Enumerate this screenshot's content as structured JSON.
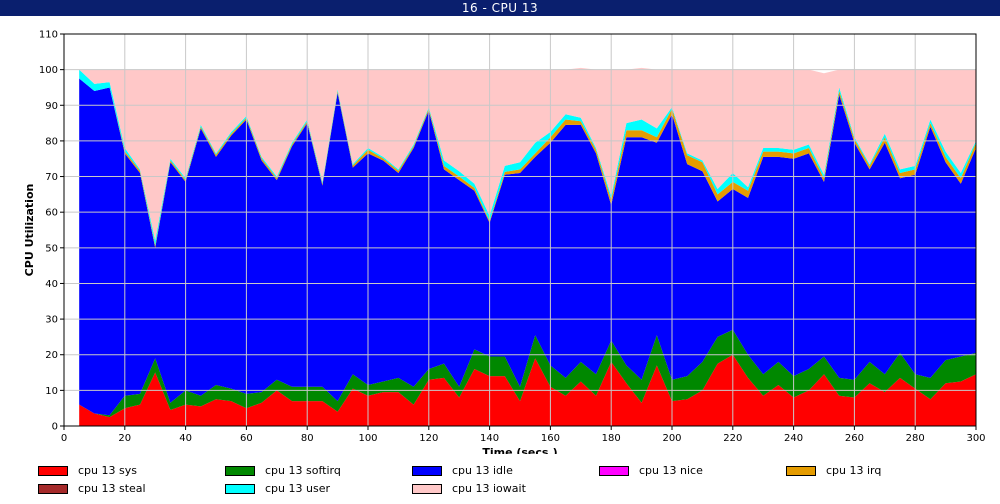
{
  "window": {
    "title": "16 - CPU 13"
  },
  "chart_data": {
    "type": "area",
    "stacked": true,
    "xlabel": "Time (secs.)",
    "ylabel": "CPU Utilization",
    "xlim": [
      0,
      300
    ],
    "ylim": [
      0,
      110
    ],
    "x_ticks": [
      0,
      20,
      40,
      60,
      80,
      100,
      120,
      140,
      160,
      180,
      200,
      220,
      240,
      260,
      280,
      300
    ],
    "y_ticks": [
      0,
      10,
      20,
      30,
      40,
      50,
      60,
      70,
      80,
      90,
      100,
      110
    ],
    "grid": true,
    "legend_position": "bottom",
    "x": [
      5,
      10,
      15,
      20,
      25,
      30,
      35,
      40,
      45,
      50,
      55,
      60,
      65,
      70,
      75,
      80,
      85,
      90,
      95,
      100,
      105,
      110,
      115,
      120,
      125,
      130,
      135,
      140,
      145,
      150,
      155,
      160,
      165,
      170,
      175,
      180,
      185,
      190,
      195,
      200,
      205,
      210,
      215,
      220,
      225,
      230,
      235,
      240,
      245,
      250,
      255,
      260,
      265,
      270,
      275,
      280,
      285,
      290,
      295,
      300
    ],
    "series": [
      {
        "name": "cpu 13 sys",
        "color": "#ff0000",
        "values": [
          6,
          3.5,
          2.5,
          5,
          6,
          15,
          4.5,
          6,
          5.5,
          7.5,
          7,
          5,
          6.5,
          10,
          7,
          7,
          7,
          4,
          10.5,
          8.5,
          9.5,
          9.5,
          6,
          13,
          13.5,
          8,
          16,
          14,
          14,
          7,
          19,
          11,
          8.5,
          12.5,
          8.5,
          18,
          12,
          6.5,
          17,
          7,
          7.5,
          10,
          17.5,
          20,
          13.5,
          8.5,
          11.5,
          8,
          10,
          14.5,
          8.5,
          8,
          12,
          9.5,
          13.5,
          10.5,
          7.5,
          12,
          12.5,
          14.5
        ]
      },
      {
        "name": "cpu 13 softirq",
        "color": "#008800",
        "values": [
          0,
          0,
          0.5,
          3.5,
          3,
          4,
          2,
          4,
          3,
          4,
          3.5,
          4,
          3,
          3,
          4,
          4,
          4,
          3,
          4,
          3,
          3,
          4,
          5,
          3,
          4,
          3,
          5.5,
          5.5,
          5.5,
          4,
          6.5,
          6,
          5,
          5.5,
          6,
          6,
          5,
          6.5,
          8.5,
          6,
          6.5,
          8,
          7.5,
          7,
          6.5,
          6,
          6.5,
          6,
          6,
          5,
          5,
          5,
          6,
          5,
          7,
          4,
          6,
          6.5,
          7,
          6
        ]
      },
      {
        "name": "cpu 13 idle",
        "color": "#0000ff",
        "values": [
          91.5,
          90.5,
          92,
          68,
          62,
          31,
          67.5,
          58.5,
          75,
          64,
          71,
          77,
          65,
          56,
          67.5,
          74,
          56.5,
          86.5,
          58,
          65,
          62,
          57.5,
          67,
          72.5,
          54.5,
          58,
          44.5,
          37.5,
          51,
          60,
          50,
          62.5,
          71,
          66.5,
          62,
          38,
          64,
          68,
          54,
          74.5,
          59.5,
          53.5,
          38,
          39.5,
          44,
          61,
          57.5,
          61,
          60.5,
          49,
          79.5,
          66.5,
          54,
          65,
          49,
          56,
          70.5,
          55.5,
          48.5,
          57.5
        ]
      },
      {
        "name": "cpu 13 nice",
        "color": "#ff00ff",
        "values": [
          0,
          0,
          0,
          0,
          0,
          0,
          0,
          0,
          0,
          0,
          0,
          0,
          0,
          0,
          0,
          0,
          0,
          0,
          0,
          0,
          0,
          0,
          0,
          0,
          0,
          0,
          0,
          0,
          0,
          0,
          0,
          0,
          0,
          0,
          0,
          0,
          0,
          0,
          0,
          0,
          0,
          0,
          0,
          0,
          0,
          0,
          0,
          0,
          0,
          0,
          0,
          0,
          0,
          0,
          0,
          0,
          0,
          0,
          0,
          0
        ]
      },
      {
        "name": "cpu 13 irq",
        "color": "#e59c00",
        "values": [
          0,
          0,
          0,
          0.6,
          0.6,
          0.6,
          0.5,
          0.5,
          0.5,
          0.6,
          0.5,
          0.5,
          0.6,
          0.5,
          0.5,
          0.5,
          0.5,
          0.5,
          0.6,
          1,
          0.6,
          0.6,
          0.5,
          0.6,
          1,
          1,
          0.8,
          0.5,
          0.8,
          1,
          1,
          1.5,
          1.5,
          1,
          1,
          1.5,
          2,
          2,
          1.5,
          1.5,
          2.5,
          2.5,
          2,
          2,
          2,
          1.5,
          1.5,
          1.5,
          1.5,
          1,
          1,
          1,
          1,
          1.5,
          1.5,
          1.5,
          1,
          1.5,
          1.5,
          1.5
        ]
      },
      {
        "name": "cpu 13 steal",
        "color": "#a52a2a",
        "values": [
          0,
          0,
          0,
          0,
          0,
          0,
          0,
          0,
          0,
          0,
          0,
          0,
          0,
          0,
          0,
          0,
          0,
          0,
          0,
          0,
          0,
          0,
          0,
          0,
          0,
          0,
          0,
          0,
          0,
          0,
          0,
          0,
          0,
          0,
          0,
          0,
          0,
          0,
          0,
          0,
          0,
          0,
          0,
          0,
          0,
          0,
          0,
          0,
          0,
          0,
          0,
          0,
          0,
          0,
          0,
          0,
          0,
          0,
          0,
          0
        ]
      },
      {
        "name": "cpu 13 user",
        "color": "#00ffff",
        "values": [
          2.5,
          2,
          1.5,
          0.9,
          0.4,
          1.4,
          0.5,
          0.5,
          0.5,
          0.4,
          0.5,
          0.5,
          0.4,
          0.5,
          0.5,
          0.5,
          0.5,
          0.5,
          0.4,
          0.5,
          0.4,
          0.4,
          0.5,
          0.4,
          1.5,
          1.5,
          1.2,
          1.5,
          1.7,
          2,
          3,
          1.5,
          1.5,
          1,
          0.5,
          1,
          2,
          3,
          2.5,
          0.5,
          0.5,
          0.5,
          1.5,
          2.5,
          1,
          1,
          1,
          1,
          1,
          1,
          1,
          0.5,
          0.5,
          1,
          1,
          1,
          1,
          1.5,
          1.5,
          0.5
        ]
      },
      {
        "name": "cpu 13 iowait",
        "color": "#ffc8c8",
        "values": [
          0,
          4,
          3.5,
          22,
          28,
          48,
          25,
          30.5,
          15.5,
          23.5,
          17.5,
          13,
          24.5,
          30,
          20.5,
          14,
          31.5,
          5.5,
          26.5,
          22,
          24.5,
          28,
          21,
          10.5,
          25.5,
          28.5,
          32,
          41,
          27,
          26,
          20.5,
          17.5,
          12.5,
          14,
          22,
          35.5,
          15,
          14.5,
          16.5,
          10.5,
          23.5,
          25.5,
          33.5,
          29,
          33,
          22,
          22,
          22.5,
          21,
          28.5,
          5,
          19,
          26.5,
          18,
          28,
          27,
          14,
          23,
          29,
          20
        ]
      }
    ]
  }
}
